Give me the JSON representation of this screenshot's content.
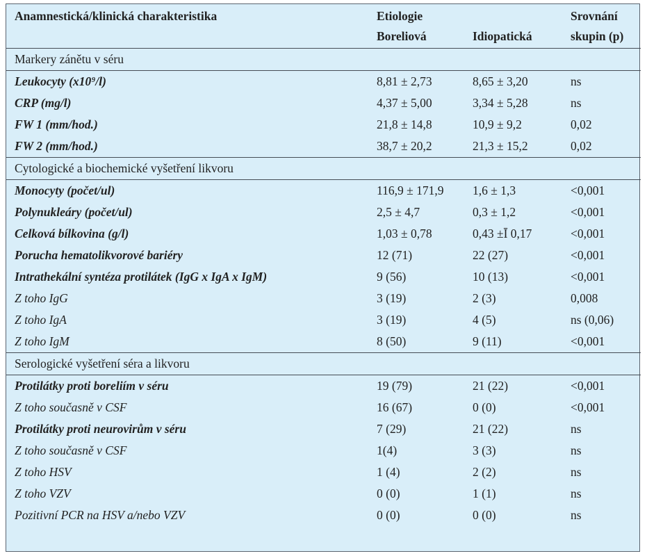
{
  "header": {
    "col1": "Anamnestická/klinická  charakteristika",
    "col2_line1": "Etiologie",
    "col2_line2": "Boreliová",
    "col3_line2": "Idiopatická",
    "col4_line1": "Srovnání",
    "col4_line2": "skupin (p)"
  },
  "sections": [
    {
      "title": "Markery zánětu v séru",
      "rows": [
        {
          "label": "Leukocyty  (x10⁹/l)",
          "style": "bold",
          "b": "8,81 ± 2,73",
          "i": "8,65 ± 3,20",
          "p": "ns"
        },
        {
          "label": "CRP (mg/l)",
          "style": "bold",
          "b": "4,37 ± 5,00",
          "i": "3,34 ± 5,28",
          "p": "ns"
        },
        {
          "label": "FW 1 (mm/hod.)",
          "style": "bold",
          "b": "21,8 ± 14,8",
          "i": "10,9 ± 9,2",
          "p": "0,02"
        },
        {
          "label": "FW 2 (mm/hod.)",
          "style": "bold",
          "b": "38,7 ± 20,2",
          "i": "21,3 ± 15,2",
          "p": "0,02"
        }
      ]
    },
    {
      "title": "Cytologické a biochemické vyšetření likvoru",
      "rows": [
        {
          "label": "Monocyty (počet/ul)",
          "style": "bold",
          "b": "116,9 ± 171,9",
          "i": "1,6 ± 1,3",
          "p": "<0,001"
        },
        {
          "label": "Polynukleáry (počet/ul)",
          "style": "bold",
          "b": "2,5 ± 4,7",
          "i": "0,3 ± 1,2",
          "p": "<0,001"
        },
        {
          "label": "Celková bílkovina (g/l)",
          "style": "bold",
          "b": "1,03 ± 0,78",
          "i": "0,43 ±Ī 0,17",
          "p": "<0,001"
        },
        {
          "label": "Porucha hematolikvorové bariéry",
          "style": "bold",
          "b": "12 (71)",
          "i": "22 (27)",
          "p": "<0,001"
        },
        {
          "label": "Intrathekální syntéza protilátek (IgG x IgA x IgM)",
          "style": "bold",
          "b": "9 (56)",
          "i": "10 (13)",
          "p": "<0,001"
        },
        {
          "label": "Z toho IgG",
          "style": "italic",
          "b": "3 (19)",
          "i": "2 (3)",
          "p": "0,008"
        },
        {
          "label": "Z toho IgA",
          "style": "italic",
          "b": "3 (19)",
          "i": "4 (5)",
          "p": "ns (0,06)"
        },
        {
          "label": "Z toho IgM",
          "style": "italic",
          "b": "8 (50)",
          "i": "9 (11)",
          "p": "<0,001"
        }
      ]
    },
    {
      "title": "Serologické vyšetření séra a likvoru",
      "rows": [
        {
          "label": "Protilátky proti boreliím v séru",
          "style": "bold",
          "b": "19 (79)",
          "i": "21 (22)",
          "p": "<0,001"
        },
        {
          "label": "Z toho současně v CSF",
          "style": "italic",
          "b": "16 (67)",
          "i": "0 (0)",
          "p": "<0,001"
        },
        {
          "label": "Protilátky proti neurovirům v séru",
          "style": "bold",
          "b": "7 (29)",
          "i": "21 (22)",
          "p": "ns"
        },
        {
          "label": "Z toho současně v CSF",
          "style": "italic",
          "b": "1(4)",
          "i": "3 (3)",
          "p": "ns"
        },
        {
          "label": "Z toho HSV",
          "style": "italic",
          "b": "1 (4)",
          "i": "2 (2)",
          "p": "ns"
        },
        {
          "label": "Z toho VZV",
          "style": "italic",
          "b": "0 (0)",
          "i": "1 (1)",
          "p": "ns"
        },
        {
          "label": "Pozitivní PCR na HSV a/nebo VZV",
          "style": "italic",
          "b": "0 (0)",
          "i": "0 (0)",
          "p": "ns"
        }
      ]
    }
  ]
}
